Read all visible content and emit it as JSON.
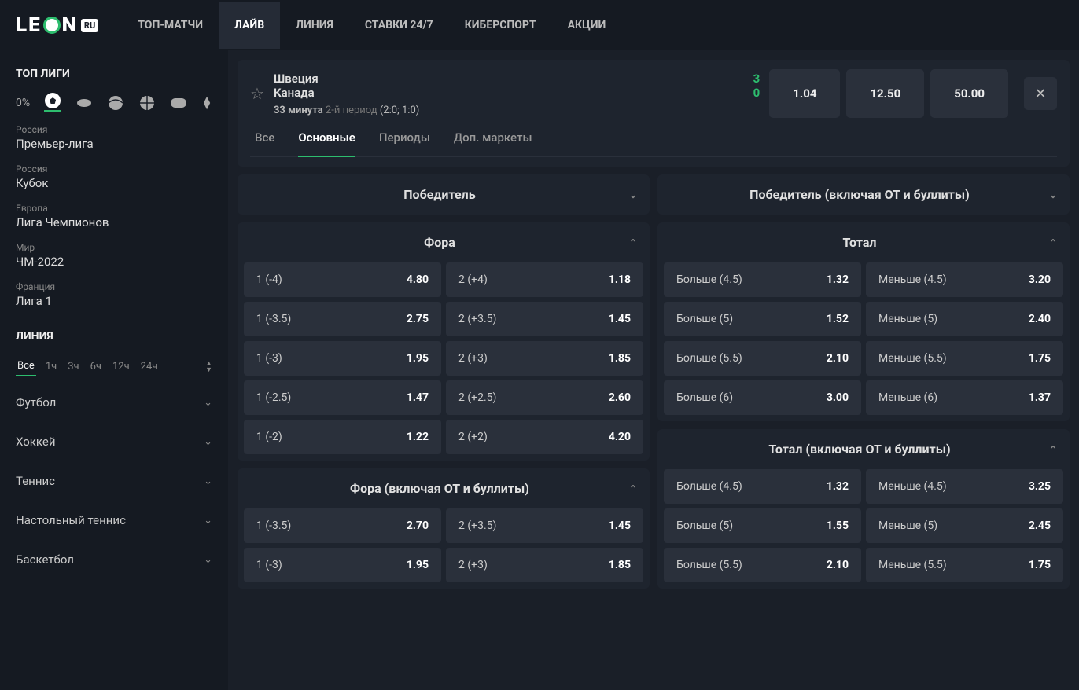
{
  "logo": {
    "text1": "LE",
    "text2": "N",
    "ru": "RU"
  },
  "nav": [
    {
      "label": "ТОП-МАТЧИ",
      "active": false
    },
    {
      "label": "ЛАЙВ",
      "active": true
    },
    {
      "label": "ЛИНИЯ",
      "active": false
    },
    {
      "label": "СТАВКИ 24/7",
      "active": false
    },
    {
      "label": "КИБЕРСПОРТ",
      "active": false
    },
    {
      "label": "АКЦИИ",
      "active": false
    }
  ],
  "sidebar": {
    "top_title": "ТОП ЛИГИ",
    "zero": "0%",
    "leagues": [
      {
        "country": "Россия",
        "name": "Премьер-лига"
      },
      {
        "country": "Россия",
        "name": "Кубок"
      },
      {
        "country": "Европа",
        "name": "Лига Чемпионов"
      },
      {
        "country": "Мир",
        "name": "ЧМ-2022"
      },
      {
        "country": "Франция",
        "name": "Лига 1"
      }
    ],
    "line_title": "ЛИНИЯ",
    "times": [
      "Все",
      "1ч",
      "3ч",
      "6ч",
      "12ч",
      "24ч"
    ],
    "sports": [
      "Футбол",
      "Хоккей",
      "Теннис",
      "Настольный теннис",
      "Баскетбол"
    ]
  },
  "match": {
    "team1": "Швеция",
    "score1": "3",
    "team2": "Канада",
    "score2": "0",
    "minute": "33 минута ",
    "period": "2-й период  ",
    "detail": "(2:0; 1:0)",
    "odds": [
      "1.04",
      "12.50",
      "50.00"
    ]
  },
  "tabs": [
    {
      "label": "Все",
      "active": false
    },
    {
      "label": "Основные",
      "active": true
    },
    {
      "label": "Периоды",
      "active": false
    },
    {
      "label": "Доп. маркеты",
      "active": false
    }
  ],
  "markets_left": [
    {
      "title": "Победитель",
      "collapsed": true,
      "rows": []
    },
    {
      "title": "Фора",
      "collapsed": false,
      "rows": [
        {
          "l": "1 (-4)",
          "lv": "4.80",
          "r": "2 (+4)",
          "rv": "1.18"
        },
        {
          "l": "1 (-3.5)",
          "lv": "2.75",
          "r": "2 (+3.5)",
          "rv": "1.45"
        },
        {
          "l": "1 (-3)",
          "lv": "1.95",
          "r": "2 (+3)",
          "rv": "1.85"
        },
        {
          "l": "1 (-2.5)",
          "lv": "1.47",
          "r": "2 (+2.5)",
          "rv": "2.60"
        },
        {
          "l": "1 (-2)",
          "lv": "1.22",
          "r": "2 (+2)",
          "rv": "4.20"
        }
      ]
    },
    {
      "title": "Фора (включая ОТ и буллиты)",
      "collapsed": false,
      "rows": [
        {
          "l": "1 (-3.5)",
          "lv": "2.70",
          "r": "2 (+3.5)",
          "rv": "1.45"
        },
        {
          "l": "1 (-3)",
          "lv": "1.95",
          "r": "2 (+3)",
          "rv": "1.85"
        }
      ]
    }
  ],
  "markets_right": [
    {
      "title": "Победитель (включая ОТ и буллиты)",
      "collapsed": true,
      "rows": []
    },
    {
      "title": "Тотал",
      "collapsed": false,
      "rows": [
        {
          "l": "Больше (4.5)",
          "lv": "1.32",
          "r": "Меньше (4.5)",
          "rv": "3.20"
        },
        {
          "l": "Больше (5)",
          "lv": "1.52",
          "r": "Меньше (5)",
          "rv": "2.40"
        },
        {
          "l": "Больше (5.5)",
          "lv": "2.10",
          "r": "Меньше (5.5)",
          "rv": "1.75"
        },
        {
          "l": "Больше (6)",
          "lv": "3.00",
          "r": "Меньше (6)",
          "rv": "1.37"
        }
      ]
    },
    {
      "title": "Тотал (включая ОТ и буллиты)",
      "collapsed": false,
      "rows": [
        {
          "l": "Больше (4.5)",
          "lv": "1.32",
          "r": "Меньше (4.5)",
          "rv": "3.25"
        },
        {
          "l": "Больше (5)",
          "lv": "1.55",
          "r": "Меньше (5)",
          "rv": "2.45"
        },
        {
          "l": "Больше (5.5)",
          "lv": "2.10",
          "r": "Меньше (5.5)",
          "rv": "1.75"
        }
      ]
    }
  ]
}
